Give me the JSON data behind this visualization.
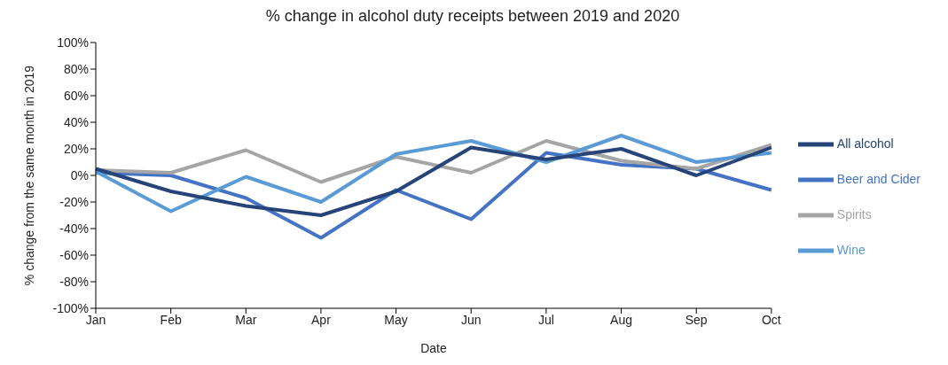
{
  "chart_data": {
    "type": "line",
    "title": "% change in alcohol duty receipts between 2019 and 2020",
    "xlabel": "Date",
    "ylabel": "% change from the same month in 2019",
    "categories": [
      "Jan",
      "Feb",
      "Mar",
      "Apr",
      "May",
      "Jun",
      "Jul",
      "Aug",
      "Sep",
      "Oct"
    ],
    "series": [
      {
        "name": "Beer and Cider",
        "color": "#4472c4",
        "values": [
          2,
          0,
          -17,
          -47,
          -11,
          -33,
          17,
          8,
          5,
          -11
        ]
      },
      {
        "name": "Spirits",
        "color": "#a5a5a5",
        "values": [
          4,
          2,
          19,
          -5,
          14,
          2,
          26,
          11,
          5,
          23
        ]
      },
      {
        "name": "Wine",
        "color": "#5b9bd5",
        "values": [
          3,
          -27,
          -1,
          -20,
          16,
          26,
          10,
          30,
          10,
          17
        ]
      },
      {
        "name": "All alcohol",
        "color": "#264478",
        "values": [
          5,
          -12,
          -23,
          -30,
          -12,
          21,
          12,
          20,
          0,
          21
        ]
      }
    ],
    "ylim": [
      -100,
      100
    ],
    "yticks": [
      {
        "value": -100,
        "label": "-100%"
      },
      {
        "value": -80,
        "label": "-80%"
      },
      {
        "value": -60,
        "label": "-60%"
      },
      {
        "value": -40,
        "label": "-40%"
      },
      {
        "value": -20,
        "label": "-20%"
      },
      {
        "value": 0,
        "label": "0%"
      },
      {
        "value": 20,
        "label": "20%"
      },
      {
        "value": 40,
        "label": "40%"
      },
      {
        "value": 60,
        "label": "60%"
      },
      {
        "value": 80,
        "label": "80%"
      },
      {
        "value": 100,
        "label": "100%"
      }
    ],
    "grid": false,
    "legend": "right",
    "marker": "none",
    "line_style": "solid"
  }
}
